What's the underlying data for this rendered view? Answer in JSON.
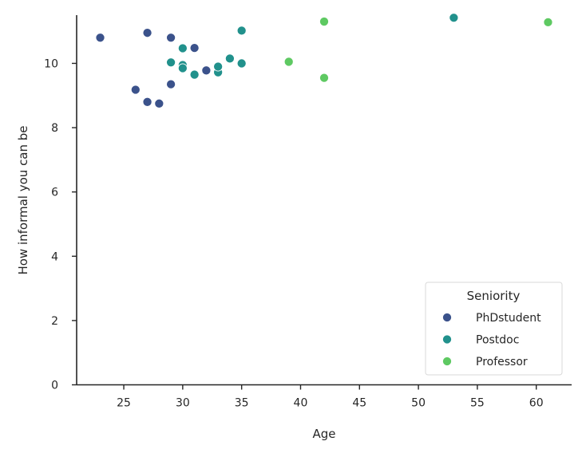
{
  "chart_data": {
    "type": "scatter",
    "title": "",
    "xlabel": "Age",
    "ylabel": "How informal you can be",
    "xlim": [
      21,
      63
    ],
    "ylim": [
      0,
      11.5
    ],
    "xticks": [
      25,
      30,
      35,
      40,
      45,
      50,
      55,
      60
    ],
    "yticks": [
      0,
      2,
      4,
      6,
      8,
      10
    ],
    "grid": false,
    "legend": {
      "title": "Seniority",
      "placement": "bottom-right"
    },
    "series": [
      {
        "name": "PhDstudent",
        "color": "#3b528b",
        "points": [
          [
            23,
            10.8
          ],
          [
            27,
            10.95
          ],
          [
            29,
            10.8
          ],
          [
            31,
            10.48
          ],
          [
            26,
            9.18
          ],
          [
            27,
            8.8
          ],
          [
            28,
            8.75
          ],
          [
            29,
            9.35
          ],
          [
            32,
            9.78
          ]
        ]
      },
      {
        "name": "Postdoc",
        "color": "#21918c",
        "points": [
          [
            30,
            10.47
          ],
          [
            29,
            10.03
          ],
          [
            30,
            9.95
          ],
          [
            30,
            9.85
          ],
          [
            31,
            9.65
          ],
          [
            33,
            9.72
          ],
          [
            33,
            9.9
          ],
          [
            34,
            10.15
          ],
          [
            35,
            10.0
          ],
          [
            35,
            11.02
          ],
          [
            53,
            11.42
          ]
        ]
      },
      {
        "name": "Professor",
        "color": "#5ec962",
        "points": [
          [
            39,
            10.05
          ],
          [
            42,
            11.3
          ],
          [
            42,
            9.55
          ],
          [
            61,
            11.28
          ]
        ]
      }
    ]
  }
}
